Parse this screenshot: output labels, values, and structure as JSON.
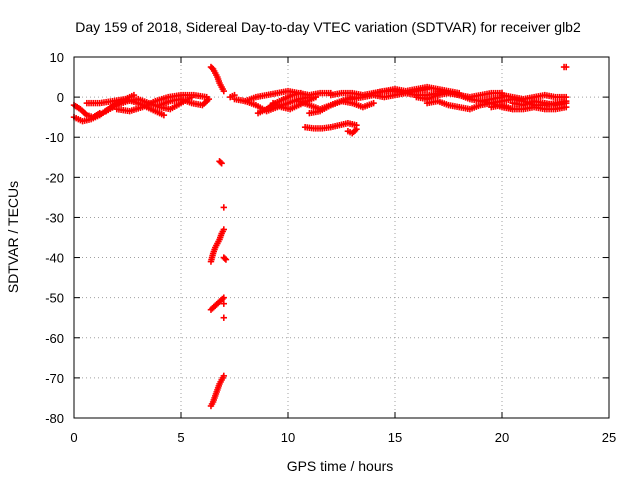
{
  "chart_data": {
    "type": "scatter",
    "title": "Day 159 of 2018, Sidereal Day-to-day VTEC variation (SDTVAR) for receiver glb2",
    "xlabel": "GPS time / hours",
    "ylabel": "SDTVAR / TECUs",
    "xlim": [
      0,
      25
    ],
    "ylim": [
      -80,
      10
    ],
    "xticks": [
      0,
      5,
      10,
      15,
      20,
      25
    ],
    "yticks": [
      10,
      0,
      -10,
      -20,
      -30,
      -40,
      -50,
      -60,
      -70,
      -80
    ],
    "grid": true,
    "marker": "plus",
    "color": "#ff0000",
    "series": [
      {
        "name": "SDTVAR",
        "segments": [
          {
            "x": [
              0.0,
              0.3,
              0.6,
              0.9,
              1.2
            ],
            "y": [
              -2.0,
              -3.0,
              -4.5,
              -5.0,
              -4.0
            ]
          },
          {
            "x": [
              0.0,
              0.4,
              0.8,
              1.2,
              1.6,
              2.0,
              2.4,
              2.8
            ],
            "y": [
              -5.0,
              -6.0,
              -5.5,
              -4.5,
              -3.0,
              -1.5,
              -0.5,
              0.5
            ]
          },
          {
            "x": [
              0.6,
              1.2,
              1.8,
              2.4,
              3.0,
              3.6,
              4.2
            ],
            "y": [
              -1.5,
              -1.5,
              -1.0,
              -0.5,
              -1.5,
              -3.0,
              -4.5
            ]
          },
          {
            "x": [
              1.5,
              2.0,
              2.5,
              3.0,
              3.5,
              4.0,
              4.5,
              5.0,
              5.5
            ],
            "y": [
              -3.5,
              -2.0,
              -1.0,
              -0.5,
              -1.5,
              -2.5,
              -3.0,
              -1.5,
              0.0
            ]
          },
          {
            "x": [
              2.0,
              2.6,
              3.2,
              3.8,
              4.4,
              5.0,
              5.6,
              6.2
            ],
            "y": [
              -3.0,
              -3.5,
              -2.5,
              -1.0,
              0.0,
              0.5,
              0.5,
              0.0
            ]
          },
          {
            "x": [
              4.0,
              4.5,
              5.0,
              5.5,
              6.0,
              6.3
            ],
            "y": [
              -2.0,
              -1.0,
              -0.5,
              -1.5,
              -2.0,
              -0.5
            ]
          },
          {
            "x": [
              6.4,
              6.5,
              6.6,
              6.7,
              6.8,
              6.9,
              7.0
            ],
            "y": [
              7.5,
              7.0,
              6.0,
              5.0,
              3.5,
              2.5,
              1.5
            ]
          },
          {
            "x": [
              6.8,
              6.9
            ],
            "y": [
              -16.0,
              -16.5
            ]
          },
          {
            "x": [
              7.0
            ],
            "y": [
              -27.5
            ]
          },
          {
            "x": [
              6.4,
              6.5,
              6.6,
              6.7,
              6.8,
              6.9,
              7.0
            ],
            "y": [
              -41.0,
              -39.0,
              -37.5,
              -36.5,
              -35.5,
              -34.0,
              -33.0
            ]
          },
          {
            "x": [
              7.0,
              7.1
            ],
            "y": [
              -40.0,
              -40.5
            ]
          },
          {
            "x": [
              6.4,
              6.6,
              6.8,
              7.0
            ],
            "y": [
              -53.0,
              -52.0,
              -51.0,
              -50.0
            ]
          },
          {
            "x": [
              7.0
            ],
            "y": [
              -51.5
            ]
          },
          {
            "x": [
              7.0
            ],
            "y": [
              -55.0
            ]
          },
          {
            "x": [
              6.4,
              6.5,
              6.6,
              6.7,
              6.8,
              6.9,
              7.0
            ],
            "y": [
              -77.0,
              -76.0,
              -74.5,
              -73.0,
              -71.5,
              -70.5,
              -69.5
            ]
          },
          {
            "x": [
              7.3,
              7.5
            ],
            "y": [
              0.0,
              0.5
            ]
          },
          {
            "x": [
              7.5,
              8.0,
              8.5,
              9.0,
              9.5,
              10.0,
              10.5,
              11.0,
              11.5,
              12.0
            ],
            "y": [
              -0.5,
              -1.0,
              0.0,
              0.5,
              1.0,
              1.5,
              1.0,
              0.5,
              1.0,
              1.0
            ]
          },
          {
            "x": [
              8.0,
              8.5,
              9.0,
              9.5,
              10.0,
              10.5,
              11.0
            ],
            "y": [
              -1.0,
              -2.0,
              -3.5,
              -2.5,
              -1.5,
              -0.5,
              0.0
            ]
          },
          {
            "x": [
              8.6,
              9.0,
              9.4,
              9.8,
              10.2,
              10.6
            ],
            "y": [
              -4.0,
              -3.0,
              -1.5,
              -0.5,
              0.5,
              1.0
            ]
          },
          {
            "x": [
              9.3,
              9.7,
              10.1,
              10.5,
              10.9,
              11.3
            ],
            "y": [
              -1.5,
              -2.5,
              -3.0,
              -2.0,
              -1.0,
              0.0
            ]
          },
          {
            "x": [
              10.5,
              11.0,
              11.5,
              12.0,
              12.5,
              13.0,
              13.5,
              14.0
            ],
            "y": [
              -1.0,
              -2.0,
              -3.0,
              -2.0,
              -1.0,
              -1.5,
              -2.5,
              -1.5
            ]
          },
          {
            "x": [
              11.0,
              11.5,
              12.0,
              12.5,
              13.0
            ],
            "y": [
              -4.0,
              -3.5,
              -2.0,
              -1.0,
              0.0
            ]
          },
          {
            "x": [
              10.8,
              11.2,
              11.6,
              12.0,
              12.4,
              12.8,
              13.2
            ],
            "y": [
              -7.5,
              -7.8,
              -7.8,
              -7.5,
              -7.0,
              -6.5,
              -7.0
            ]
          },
          {
            "x": [
              12.8,
              13.0,
              13.2
            ],
            "y": [
              -8.5,
              -9.0,
              -8.0
            ]
          },
          {
            "x": [
              12.0,
              12.5,
              13.0,
              13.5,
              14.0,
              14.5,
              15.0,
              15.5,
              16.0,
              16.5
            ],
            "y": [
              0.5,
              1.0,
              1.0,
              0.5,
              1.0,
              1.5,
              1.5,
              1.0,
              1.5,
              2.0
            ]
          },
          {
            "x": [
              13.0,
              13.5,
              14.0,
              14.5,
              15.0,
              15.5,
              16.0,
              16.5,
              17.0
            ],
            "y": [
              -0.5,
              0.0,
              0.5,
              0.0,
              0.5,
              1.0,
              0.5,
              0.5,
              1.0
            ]
          },
          {
            "x": [
              14.0,
              14.5,
              15.0,
              15.5,
              16.0,
              16.5,
              17.0,
              17.5,
              18.0
            ],
            "y": [
              1.0,
              1.5,
              2.0,
              1.5,
              2.0,
              2.5,
              2.0,
              1.5,
              1.0
            ]
          },
          {
            "x": [
              16.0,
              16.5,
              17.0,
              17.5,
              18.0,
              18.5,
              19.0,
              19.5,
              20.0
            ],
            "y": [
              0.0,
              -0.5,
              0.5,
              1.0,
              0.5,
              -0.5,
              -1.0,
              -0.5,
              0.0
            ]
          },
          {
            "x": [
              16.5,
              17.0,
              17.5,
              18.0,
              18.5,
              19.0,
              19.5,
              20.0,
              20.5
            ],
            "y": [
              -1.5,
              -1.0,
              -2.0,
              -2.5,
              -3.0,
              -2.0,
              -1.5,
              -2.5,
              -3.0
            ]
          },
          {
            "x": [
              17.0,
              17.5,
              18.0,
              18.5,
              19.0,
              19.5,
              20.0
            ],
            "y": [
              1.5,
              1.0,
              0.5,
              0.0,
              0.5,
              1.0,
              1.0
            ]
          },
          {
            "x": [
              19.0,
              19.5,
              20.0,
              20.5,
              21.0,
              21.5,
              22.0,
              22.5,
              23.0
            ],
            "y": [
              -1.0,
              -1.5,
              -1.0,
              -0.5,
              -1.0,
              -2.0,
              -2.0,
              -1.5,
              -1.0
            ]
          },
          {
            "x": [
              19.5,
              20.0,
              20.5,
              21.0,
              21.5,
              22.0,
              22.5,
              23.0
            ],
            "y": [
              -2.5,
              -2.0,
              -3.0,
              -3.0,
              -2.5,
              -3.0,
              -3.0,
              -2.5
            ]
          },
          {
            "x": [
              20.0,
              20.5,
              21.0,
              21.5,
              22.0,
              22.5,
              23.0
            ],
            "y": [
              0.5,
              0.0,
              -0.5,
              0.0,
              0.5,
              0.0,
              0.0
            ]
          },
          {
            "x": [
              20.5,
              21.0,
              21.5,
              22.0,
              22.5,
              23.0
            ],
            "y": [
              -1.5,
              -2.0,
              -1.0,
              -1.5,
              -2.0,
              -1.5
            ]
          },
          {
            "x": [
              22.9,
              23.0
            ],
            "y": [
              7.5,
              7.5
            ]
          }
        ]
      }
    ]
  }
}
